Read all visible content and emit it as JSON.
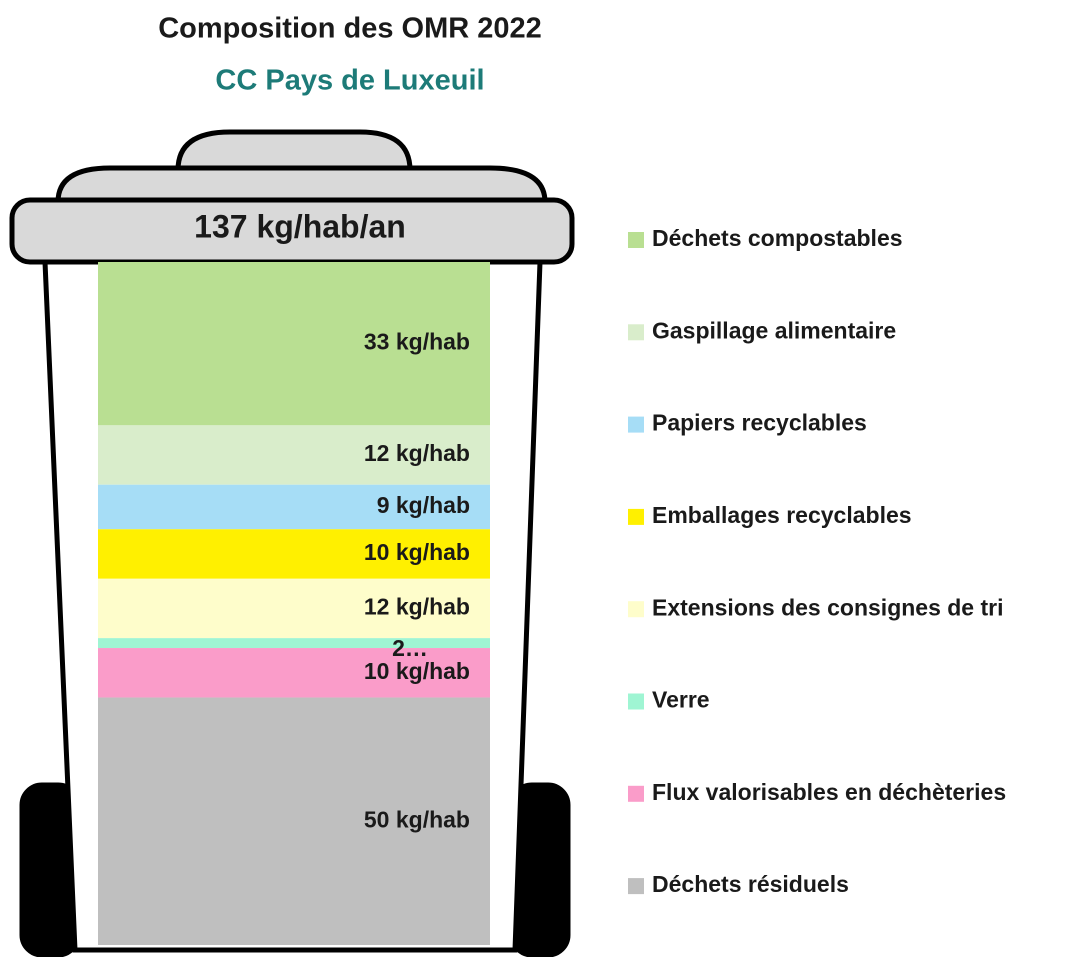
{
  "chart_data": {
    "type": "stacked-bar",
    "title": "Composition des OMR 2022",
    "subtitle": "CC Pays de Luxeuil",
    "annotation": "137 kg/hab/an",
    "series": [
      {
        "name": "Déchets compostables",
        "color": "#b9df92",
        "values": [
          33
        ],
        "value_labels": [
          "33 kg/hab"
        ]
      },
      {
        "name": "Gaspillage alimentaire",
        "color": "#d9edcb",
        "values": [
          12
        ],
        "value_labels": [
          "12 kg/hab"
        ]
      },
      {
        "name": "Papiers recyclables",
        "color": "#a6ddf6",
        "values": [
          9
        ],
        "value_labels": [
          "9 kg/hab"
        ]
      },
      {
        "name": "Emballages recyclables",
        "color": "#fff000",
        "values": [
          10
        ],
        "value_labels": [
          "10 kg/hab"
        ]
      },
      {
        "name": "Extensions des consignes de tri",
        "color": "#fefdcb",
        "values": [
          12
        ],
        "value_labels": [
          "12 kg/hab"
        ]
      },
      {
        "name": "Verre",
        "color": "#9ff5d3",
        "values": [
          2
        ],
        "value_labels": [
          "2…"
        ]
      },
      {
        "name": "Flux valorisables en déchèteries",
        "color": "#fa9cc9",
        "values": [
          10
        ],
        "value_labels": [
          "10 kg/hab"
        ]
      },
      {
        "name": "Déchets résiduels",
        "color": "#bfbfbf",
        "values": [
          50
        ],
        "value_labels": [
          "50 kg/hab"
        ]
      }
    ]
  }
}
